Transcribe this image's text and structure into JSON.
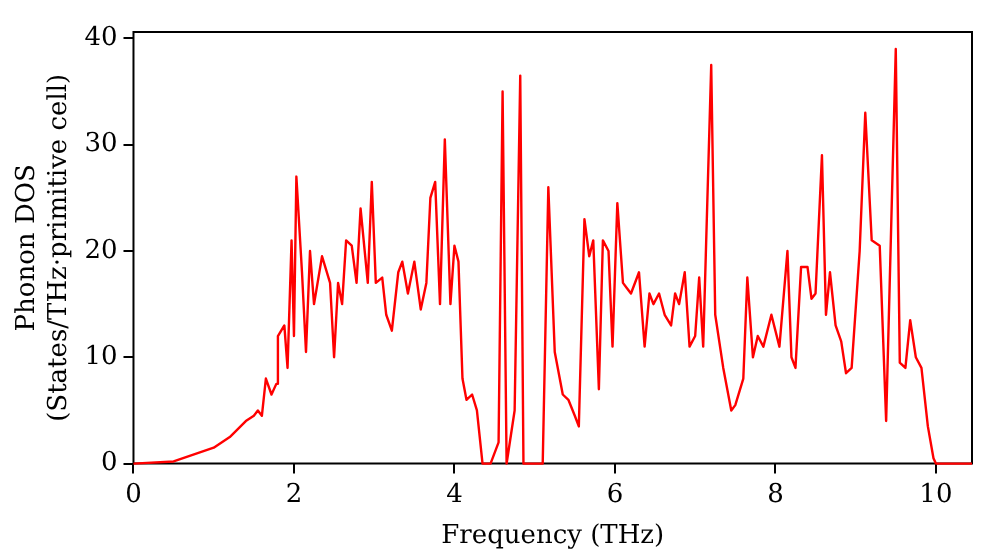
{
  "chart_data": {
    "type": "line",
    "xlabel": "Frequency (THz)",
    "ylabel": "Phonon DOS\n(States/THz·primitive cell)",
    "xlim": [
      0,
      10.45
    ],
    "ylim": [
      0,
      40.6
    ],
    "xticks": [
      0,
      2,
      4,
      6,
      8,
      10
    ],
    "yticks": [
      0,
      10,
      20,
      30,
      40
    ],
    "grid": false,
    "legend": false,
    "marker": "none",
    "line_style": "solid",
    "x": [
      0,
      0.5,
      1.0,
      1.2,
      1.4,
      1.5,
      1.55,
      1.6,
      1.65,
      1.72,
      1.78,
      1.8,
      1.88,
      1.92,
      1.97,
      2.0,
      2.03,
      2.1,
      2.15,
      2.2,
      2.25,
      2.35,
      2.45,
      2.5,
      2.55,
      2.6,
      2.65,
      2.72,
      2.78,
      2.83,
      2.92,
      2.97,
      3.02,
      3.1,
      3.15,
      3.22,
      3.3,
      3.35,
      3.42,
      3.5,
      3.58,
      3.65,
      3.7,
      3.76,
      3.82,
      3.88,
      3.95,
      4.0,
      4.05,
      4.1,
      4.15,
      4.22,
      4.28,
      4.35,
      4.45,
      4.55,
      4.6,
      4.65,
      4.75,
      4.82,
      4.86,
      5.1,
      5.17,
      5.25,
      5.35,
      5.42,
      5.5,
      5.55,
      5.62,
      5.68,
      5.73,
      5.8,
      5.85,
      5.92,
      5.97,
      6.03,
      6.1,
      6.15,
      6.2,
      6.3,
      6.37,
      6.43,
      6.48,
      6.55,
      6.62,
      6.7,
      6.75,
      6.8,
      6.87,
      6.93,
      7.0,
      7.05,
      7.1,
      7.2,
      7.25,
      7.35,
      7.45,
      7.5,
      7.6,
      7.65,
      7.72,
      7.78,
      7.85,
      7.95,
      8.05,
      8.15,
      8.2,
      8.25,
      8.32,
      8.4,
      8.45,
      8.5,
      8.58,
      8.63,
      8.68,
      8.75,
      8.82,
      8.88,
      8.95,
      9.05,
      9.12,
      9.2,
      9.3,
      9.38,
      9.5,
      9.55,
      9.62,
      9.68,
      9.75,
      9.82,
      9.9,
      9.97,
      10.0,
      10.45
    ],
    "series": [
      {
        "color": "#ff0000",
        "values": [
          0,
          0.2,
          1.5,
          2.5,
          4,
          4.5,
          5,
          4.5,
          8,
          6.5,
          7.5,
          12,
          13,
          9,
          21,
          12,
          27,
          18,
          10.5,
          20,
          15,
          19.5,
          17,
          10,
          17,
          15,
          21,
          20.5,
          17,
          24,
          17,
          26.5,
          17,
          17.5,
          14,
          12.5,
          18,
          19,
          16,
          19,
          14.5,
          17,
          25,
          26.5,
          15,
          30.5,
          15,
          20.5,
          19,
          8,
          6,
          6.5,
          5,
          0,
          0,
          2,
          35,
          0,
          5,
          36.5,
          0,
          0,
          26,
          10.5,
          6.5,
          6,
          4.5,
          3.5,
          23,
          19.5,
          21,
          7,
          21,
          20,
          11,
          24.5,
          17,
          16.5,
          16,
          18,
          11,
          16,
          15,
          16,
          14,
          13,
          16,
          15,
          18,
          11,
          12,
          17.5,
          11,
          37.5,
          14,
          9,
          5,
          5.5,
          8,
          17.5,
          10,
          12,
          11,
          14,
          11,
          20,
          10,
          9,
          18.5,
          18.5,
          15.5,
          16,
          29,
          14,
          18,
          13,
          11.5,
          8.5,
          9,
          20,
          33,
          21,
          20.5,
          4,
          39,
          9.5,
          9,
          13.5,
          10,
          9,
          3.5,
          0.5,
          0,
          0
        ]
      }
    ]
  }
}
